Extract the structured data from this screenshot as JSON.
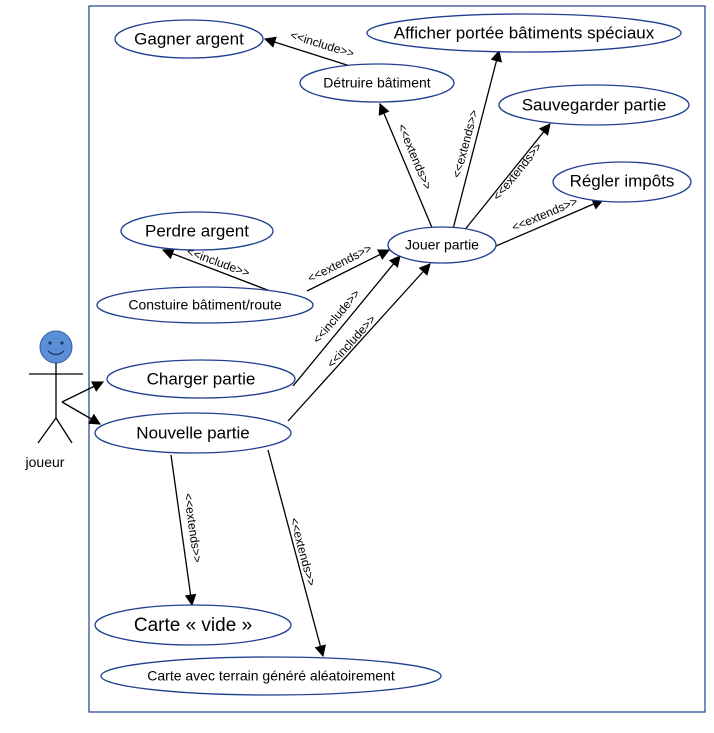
{
  "actor": {
    "name": "joueur"
  },
  "colors": {
    "system_border": "#1f3f8f",
    "ellipse_border": "#1f3f8f",
    "actor_head": "#5a8fd6",
    "arrow": "#000000"
  },
  "use_cases": {
    "gagner": "Gagner argent",
    "afficher": "Afficher portée bâtiments spéciaux",
    "detruire": "Détruire bâtiment",
    "sauvegarder": "Sauvegarder partie",
    "regler": "Régler impôts",
    "perdre": "Perdre argent",
    "jouer": "Jouer partie",
    "construire": "Constuire bâtiment/route",
    "charger": "Charger partie",
    "nouvelle": "Nouvelle partie",
    "carte_vide": "Carte « vide »",
    "carte_aleatoire": "Carte avec terrain généré aléatoirement"
  },
  "relations": {
    "detruire_gagner": "<<include>>",
    "jouer_detruire": "<<extends>>",
    "jouer_afficher": "<<extends>>",
    "jouer_sauvegarder": "<<extends>>",
    "jouer_regler": "<<extends>>",
    "construire_perdre": "<<include>>",
    "construire_jouer": "<<extends>>",
    "charger_jouer": "<<include>>",
    "nouvelle_jouer": "<<include>>",
    "nouvelle_carte_vide": "<<extends>>",
    "nouvelle_carte_aleatoire": "<<extends>>"
  }
}
